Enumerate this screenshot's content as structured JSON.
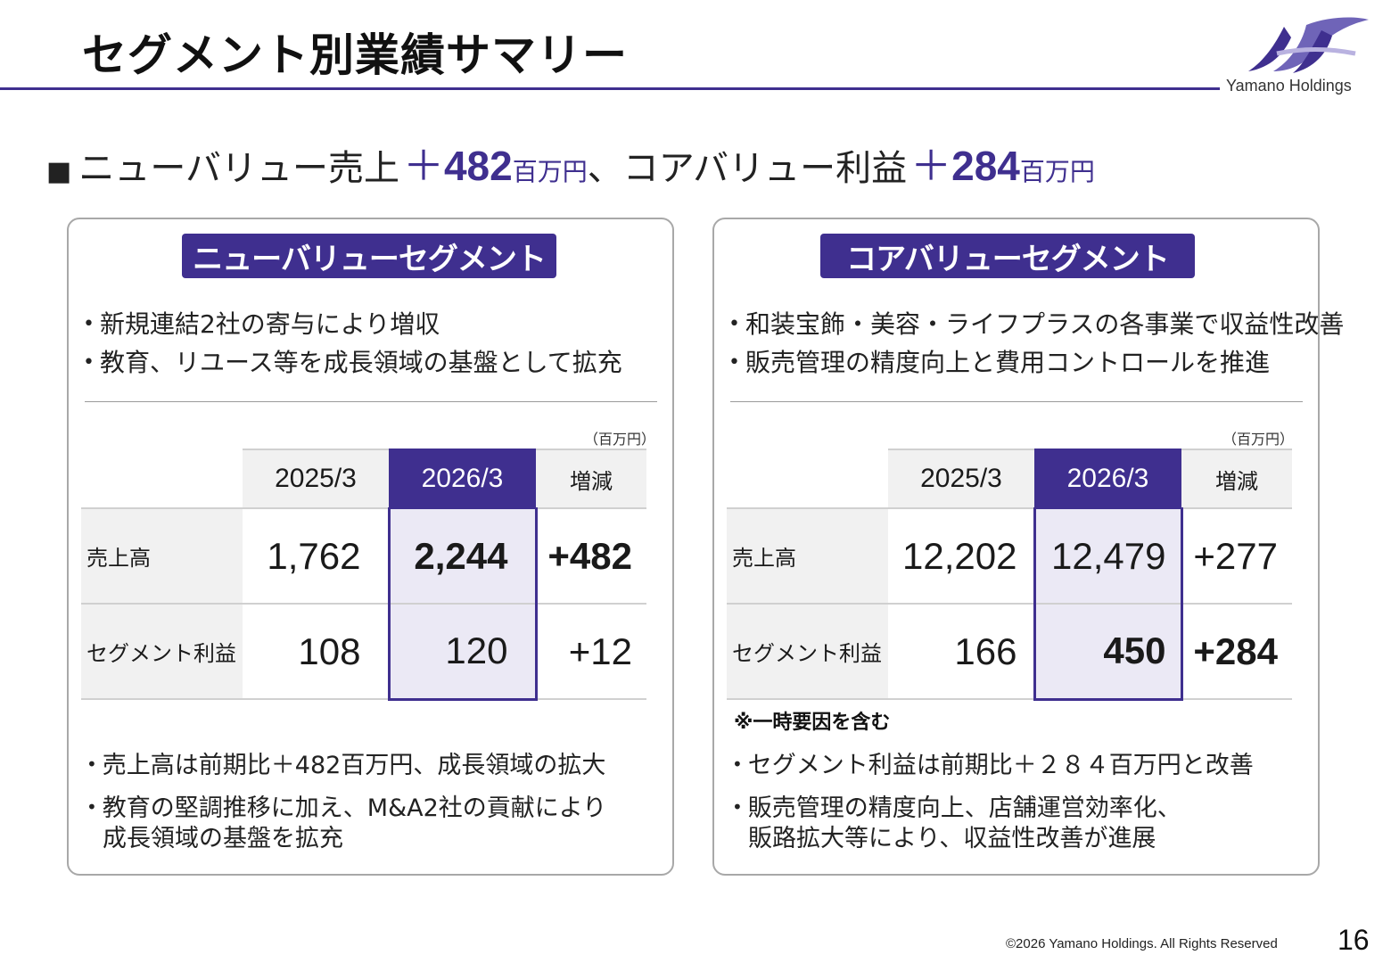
{
  "header": {
    "title": "セグメント別業績サマリー",
    "logo_text": "Yamano Holdings",
    "brand_color": "#3f2f8f"
  },
  "headline": {
    "bullet": "■",
    "part1": "ニューバリュー売上",
    "plus1": "＋",
    "value1": "482",
    "unit1": "百万円",
    "sep": "、コアバリュー利益",
    "plus2": "＋",
    "value2": "284",
    "unit2": "百万円"
  },
  "panels": {
    "new_value": {
      "label": "ニューバリューセグメント",
      "bullets": [
        "新規連結2社の寄与により増収",
        "教育、リユース等を成長領域の基盤として拡充"
      ],
      "unit": "（百万円）",
      "headers": {
        "prev": "2025/3",
        "cur": "2026/3",
        "diff": "増減"
      },
      "rows": [
        {
          "label": "売上高",
          "prev": "1,762",
          "cur": "2,244",
          "diff": "+482"
        },
        {
          "label": "セグメント利益",
          "prev": "108",
          "cur": "120",
          "diff": "+12"
        }
      ],
      "notes": [
        {
          "line1": "売上高は前期比＋482百万円、成長領域の拡大",
          "line2": ""
        },
        {
          "line1": "教育の堅調推移に加え、M&A2社の貢献により",
          "line2": "成長領域の基盤を拡充"
        }
      ]
    },
    "core_value": {
      "label": "コアバリューセグメント",
      "bullets": [
        "和装宝飾・美容・ライフプラスの各事業で収益性改善",
        "販売管理の精度向上と費用コントロールを推進"
      ],
      "unit": "（百万円）",
      "headers": {
        "prev": "2025/3",
        "cur": "2026/3",
        "diff": "増減"
      },
      "rows": [
        {
          "label": "売上高",
          "prev": "12,202",
          "cur": "12,479",
          "diff": "+277"
        },
        {
          "label": "セグメント利益",
          "prev": "166",
          "cur": "450",
          "diff": "+284"
        }
      ],
      "footnote": "※一時要因を含む",
      "notes": [
        {
          "line1": "セグメント利益は前期比＋２８４百万円と改善",
          "line2": ""
        },
        {
          "line1": "販売管理の精度向上、店舗運営効率化、",
          "line2": "販路拡大等により、収益性改善が進展"
        }
      ]
    }
  },
  "footer": {
    "copyright": "©2026 Yamano Holdings. All Rights Reserved",
    "page_number": "16"
  }
}
